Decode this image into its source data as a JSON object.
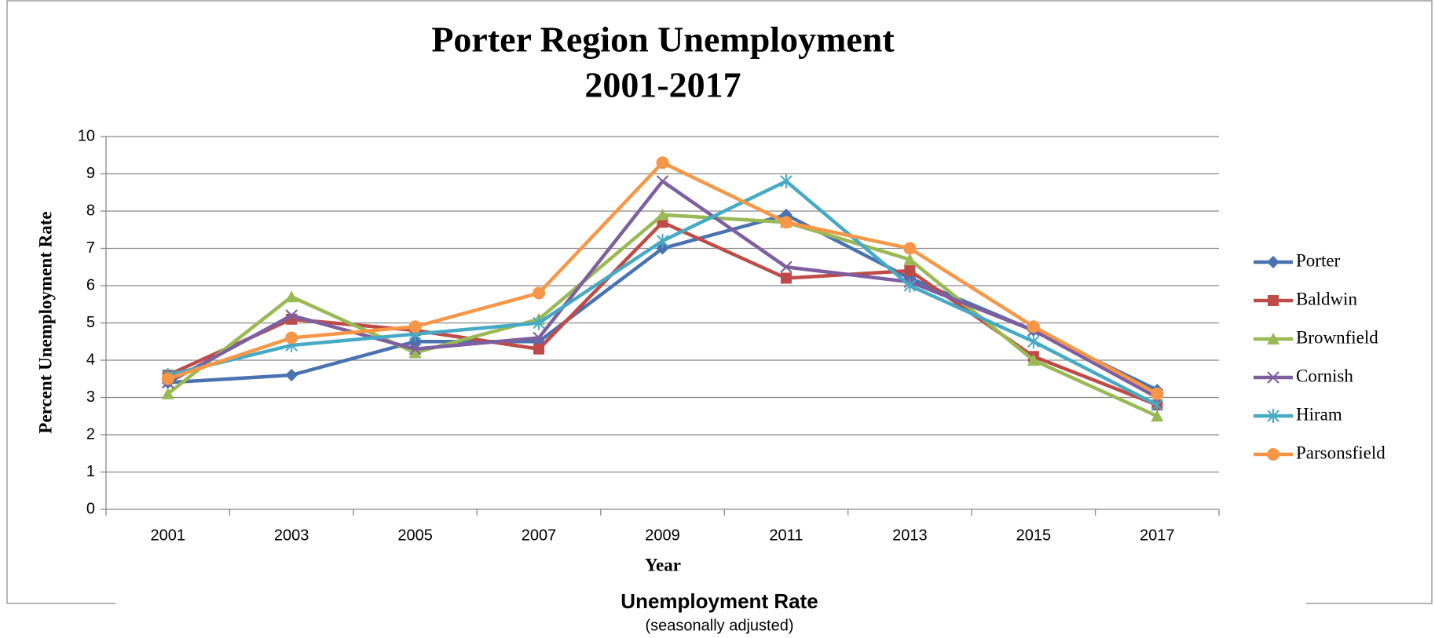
{
  "chart_data": {
    "type": "line",
    "title": "Porter Region Unemployment",
    "subtitle": "2001-2017",
    "x_label": "Year",
    "y_label": "Percent Unemployment Rate",
    "categories": [
      "2001",
      "2003",
      "2005",
      "2007",
      "2009",
      "2011",
      "2013",
      "2015",
      "2017"
    ],
    "series": [
      {
        "name": "Porter",
        "color": "#4a72b0",
        "marker": "diamond",
        "values": [
          3.4,
          3.6,
          4.5,
          4.5,
          7.0,
          7.9,
          6.2,
          4.8,
          3.2
        ]
      },
      {
        "name": "Baldwin",
        "color": "#be4b48",
        "marker": "square",
        "values": [
          3.6,
          5.1,
          4.8,
          4.3,
          7.7,
          6.2,
          6.4,
          4.1,
          2.8
        ]
      },
      {
        "name": "Brownfield",
        "color": "#98b954",
        "marker": "triangle",
        "values": [
          3.1,
          5.7,
          4.2,
          5.1,
          7.9,
          7.7,
          6.7,
          4.0,
          2.5
        ]
      },
      {
        "name": "Cornish",
        "color": "#7d5fa0",
        "marker": "x",
        "values": [
          3.4,
          5.2,
          4.3,
          4.6,
          8.8,
          6.5,
          6.1,
          4.8,
          3.0
        ]
      },
      {
        "name": "Hiram",
        "color": "#46aac5",
        "marker": "star",
        "values": [
          3.6,
          4.4,
          4.7,
          5.0,
          7.2,
          8.8,
          6.0,
          4.5,
          2.8
        ]
      },
      {
        "name": "Parsonsfield",
        "color": "#f79646",
        "marker": "circle",
        "values": [
          3.5,
          4.6,
          4.9,
          5.8,
          9.3,
          7.7,
          7.0,
          4.9,
          3.1
        ]
      }
    ],
    "ylim": [
      0,
      10
    ],
    "yticks": [
      0,
      1,
      2,
      3,
      4,
      5,
      6,
      7,
      8,
      9,
      10
    ],
    "grid": true,
    "legend": "right",
    "annotations": [
      "Unemployment Rate",
      "(seasonally adjusted)"
    ]
  }
}
